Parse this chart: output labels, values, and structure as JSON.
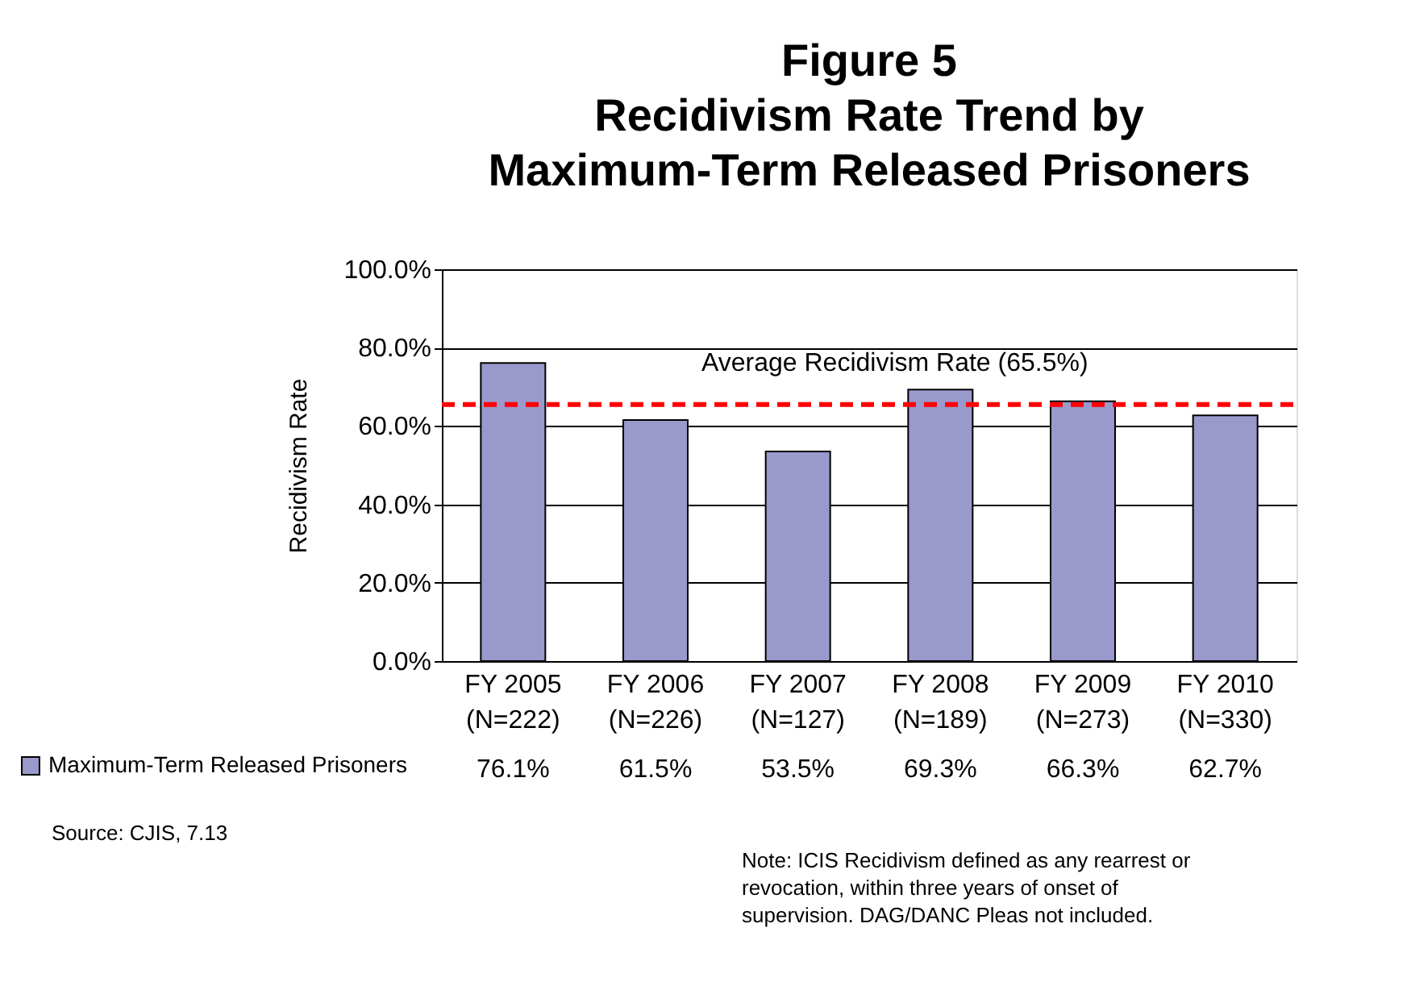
{
  "chart_data": {
    "type": "bar",
    "title": "Figure 5\nRecidivism Rate Trend by\nMaximum-Term Released Prisoners",
    "ylabel": "Recidivism Rate",
    "categories": [
      "FY 2005\n(N=222)",
      "FY 2006\n(N=226)",
      "FY 2007\n(N=127)",
      "FY 2008\n(N=189)",
      "FY 2009\n(N=273)",
      "FY 2010\n(N=330)"
    ],
    "series": [
      {
        "name": "Maximum-Term Released Prisoners",
        "color": "#9999cc",
        "values": [
          76.1,
          61.5,
          53.5,
          69.3,
          66.3,
          62.7
        ],
        "value_labels": [
          "76.1%",
          "61.5%",
          "53.5%",
          "69.3%",
          "66.3%",
          "62.7%"
        ]
      }
    ],
    "ylim": [
      0,
      100
    ],
    "yticks": [
      {
        "value": 0,
        "label": "0.0%"
      },
      {
        "value": 20,
        "label": "20.0%"
      },
      {
        "value": 40,
        "label": "40.0%"
      },
      {
        "value": 60,
        "label": "60.0%"
      },
      {
        "value": 80,
        "label": "80.0%"
      },
      {
        "value": 100,
        "label": "100.0%"
      }
    ],
    "grid": "y",
    "legend": "bottom left",
    "ref_lines": [
      {
        "axis": "y",
        "value": 65.5,
        "label": "Average Recidivism Rate (65.5%)",
        "color": "#ff0000",
        "line_style": "dashed"
      }
    ],
    "annotations": [
      "Source: CJIS, 7.13",
      "Note: ICIS Recidivism defined as any rearrest or revocation, within three years of onset of supervision. DAG/DANC Pleas not included."
    ]
  }
}
